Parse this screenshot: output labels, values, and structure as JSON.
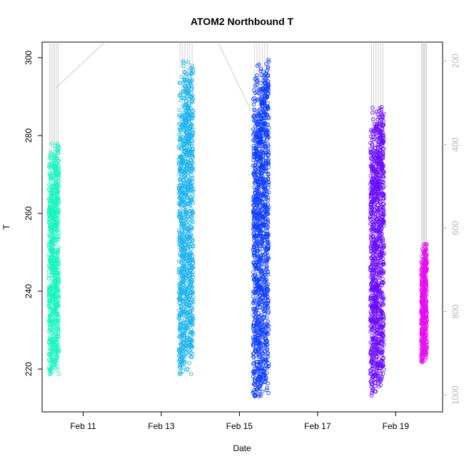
{
  "chart_data": {
    "type": "scatter",
    "title": "ATOM2 Northbound T",
    "xlabel": "Date",
    "ylabel": "T",
    "x_ticks": [
      "Feb 11",
      "Feb 13",
      "Feb 15",
      "Feb 17",
      "Feb 19"
    ],
    "x_tick_days": [
      11,
      13,
      15,
      17,
      19
    ],
    "xlim": [
      9.95,
      20.2
    ],
    "ylim": [
      209,
      304
    ],
    "y_ticks": [
      220,
      240,
      260,
      280,
      300
    ],
    "y2_ticks": [
      200,
      400,
      600,
      800,
      1000
    ],
    "y2lim": [
      1040,
      155
    ],
    "y2_axis_color": "#b8b8b8",
    "profile_line_color": "#c8c8c8",
    "grid": false,
    "legend": "none",
    "clusters": [
      {
        "date_start": 10.12,
        "date_end": 10.38,
        "t_min": 218,
        "t_max": 279,
        "color": "#19f5bf",
        "pressure_top": 155
      },
      {
        "date_start": 13.45,
        "date_end": 13.82,
        "t_min": 218,
        "t_max": 299.5,
        "color": "#1eb4ee",
        "pressure_top": 155
      },
      {
        "date_start": 15.35,
        "date_end": 15.75,
        "t_min": 212,
        "t_max": 299.5,
        "color": "#0d3cff",
        "pressure_top": 155
      },
      {
        "date_start": 18.35,
        "date_end": 18.7,
        "t_min": 213,
        "t_max": 288,
        "color": "#6a0bff",
        "pressure_top": 155
      },
      {
        "date_start": 19.65,
        "date_end": 19.8,
        "t_min": 221,
        "t_max": 253,
        "color": "#e60ff0",
        "pressure_top": 155
      }
    ],
    "connector_lines": [
      {
        "x": [
          10.3,
          11.55
        ],
        "y2": [
          265,
          155
        ]
      },
      {
        "x": [
          14.45,
          15.3
        ],
        "y2": [
          155,
          320
        ]
      }
    ]
  }
}
